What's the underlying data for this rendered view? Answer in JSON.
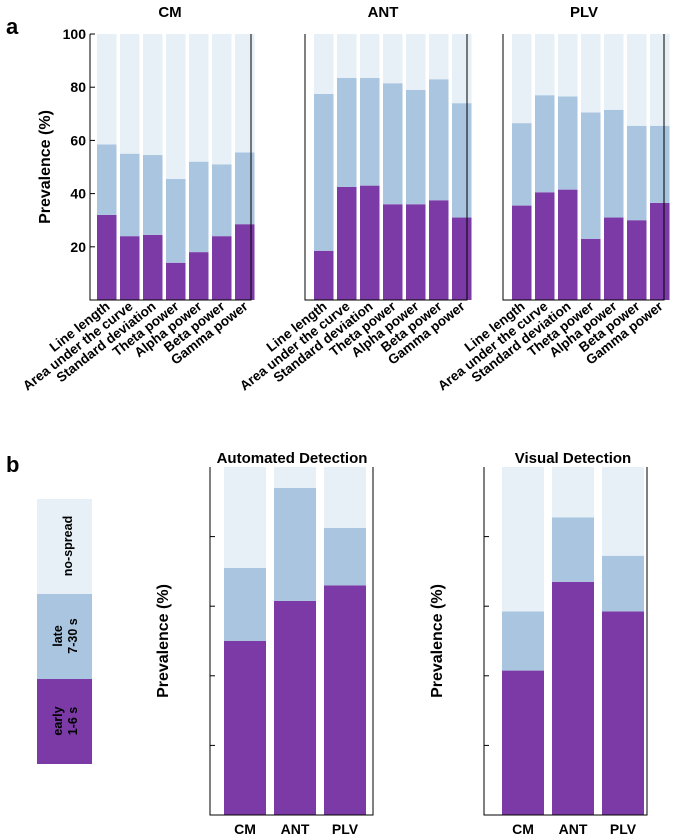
{
  "panel_labels": {
    "a": "a",
    "b": "b"
  },
  "colors": {
    "early": "#7b3aa6",
    "late": "#a9c5e0",
    "no_spread": "#e6f0f6"
  },
  "legend": [
    {
      "key": "no_spread",
      "label_lines": [
        "no-spread"
      ]
    },
    {
      "key": "late",
      "label_lines": [
        "late",
        "7-30 s"
      ]
    },
    {
      "key": "early",
      "label_lines": [
        "early",
        "1-6 s"
      ]
    }
  ],
  "chart_data": [
    {
      "id": "a-cm",
      "type": "bar",
      "stacked": true,
      "title": "CM",
      "ylabel": "Prevalence (%)",
      "ylim": [
        0,
        100
      ],
      "yticks": [
        20,
        40,
        60,
        80,
        100
      ],
      "categories": [
        "Line length",
        "Area under the curve",
        "Standard deviation",
        "Theta power",
        "Alpha power",
        "Beta power",
        "Gamma power"
      ],
      "series": [
        {
          "name": "early",
          "values": [
            32,
            24,
            24.5,
            14,
            18,
            24,
            28.5
          ]
        },
        {
          "name": "late",
          "values": [
            26.5,
            31,
            30,
            31.5,
            34,
            27,
            27
          ]
        },
        {
          "name": "no-spread",
          "values": [
            41.5,
            45,
            45.5,
            54.5,
            48,
            49,
            44.5
          ]
        }
      ]
    },
    {
      "id": "a-ant",
      "type": "bar",
      "stacked": true,
      "title": "ANT",
      "ylim": [
        0,
        100
      ],
      "categories": [
        "Line length",
        "Area under the curve",
        "Standard deviation",
        "Theta power",
        "Alpha power",
        "Beta power",
        "Gamma power"
      ],
      "series": [
        {
          "name": "early",
          "values": [
            18.5,
            42.5,
            43,
            36,
            36,
            37.5,
            31
          ]
        },
        {
          "name": "late",
          "values": [
            59,
            41,
            40.5,
            45.5,
            43,
            45.5,
            43
          ]
        },
        {
          "name": "no-spread",
          "values": [
            22.5,
            16.5,
            16.5,
            18.5,
            21,
            17,
            26
          ]
        }
      ]
    },
    {
      "id": "a-plv",
      "type": "bar",
      "stacked": true,
      "title": "PLV",
      "ylim": [
        0,
        100
      ],
      "categories": [
        "Line length",
        "Area under the curve",
        "Standard deviation",
        "Theta power",
        "Alpha power",
        "Beta power",
        "Gamma power"
      ],
      "series": [
        {
          "name": "early",
          "values": [
            35.5,
            40.5,
            41.5,
            23,
            31,
            30,
            36.5
          ]
        },
        {
          "name": "late",
          "values": [
            31,
            36.5,
            35,
            47.5,
            40.5,
            35.5,
            29
          ]
        },
        {
          "name": "no-spread",
          "values": [
            33.5,
            23,
            23.5,
            29.5,
            28.5,
            34.5,
            34.5
          ]
        }
      ]
    },
    {
      "id": "b-auto",
      "type": "bar",
      "stacked": true,
      "title": "Automated Detection",
      "ylabel": "Prevalence (%)",
      "ylim": [
        0,
        100
      ],
      "categories": [
        "CM",
        "ANT",
        "PLV"
      ],
      "series": [
        {
          "name": "early",
          "values": [
            50,
            61.5,
            66
          ]
        },
        {
          "name": "late",
          "values": [
            21,
            32.5,
            16.5
          ]
        },
        {
          "name": "no-spread",
          "values": [
            29,
            6,
            17.5
          ]
        }
      ]
    },
    {
      "id": "b-visual",
      "type": "bar",
      "stacked": true,
      "title": "Visual Detection",
      "ylabel": "Prevalence (%)",
      "ylim": [
        0,
        100
      ],
      "categories": [
        "CM",
        "ANT",
        "PLV"
      ],
      "series": [
        {
          "name": "early",
          "values": [
            41.5,
            67,
            58.5
          ]
        },
        {
          "name": "late",
          "values": [
            17,
            18.5,
            16
          ]
        },
        {
          "name": "no-spread",
          "values": [
            41.5,
            14.5,
            25.5
          ]
        }
      ]
    }
  ]
}
